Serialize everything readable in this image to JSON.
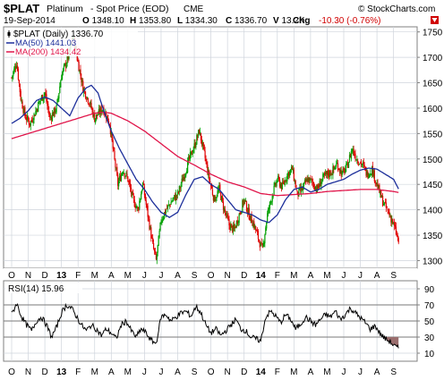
{
  "header": {
    "symbol": "$PLAT",
    "name": "Platinum",
    "subtitle": "- Spot Price (EOD)",
    "exchange": "CME",
    "watermark": "© StockCharts.com",
    "date": "19-Sep-2014",
    "ohlc": [
      {
        "k": "O",
        "v": "1348.10"
      },
      {
        "k": "H",
        "v": "1353.80"
      },
      {
        "k": "L",
        "v": "1334.30"
      },
      {
        "k": "C",
        "v": "1336.70"
      },
      {
        "k": "V",
        "v": "13.2K"
      }
    ],
    "chg_label": "Chg",
    "chg_value": "-10.30 (-0.76%)"
  },
  "legend": {
    "price": "$PLAT (Daily) 1336.70",
    "ma50": "MA(50) 1441.03",
    "ma200": "MA(200) 1434.42"
  },
  "rsi_label": "RSI(14) 15.96",
  "colors": {
    "up": "#00a000",
    "down": "#e00000",
    "ma50": "#1c2e9a",
    "ma200": "#e0154a",
    "grid": "#cfd4dc",
    "rsi_line": "#000000",
    "rsi_fill": "#9a6d6d"
  },
  "chart_data": {
    "type": "candlestick",
    "x_ticks": [
      "O",
      "N",
      "D",
      "13",
      "F",
      "M",
      "A",
      "M",
      "J",
      "J",
      "A",
      "S",
      "O",
      "N",
      "D",
      "14",
      "F",
      "M",
      "A",
      "M",
      "J",
      "J",
      "A",
      "S"
    ],
    "bold_ticks": [
      "13",
      "14"
    ],
    "price_axis": {
      "ticks": [
        1300,
        1350,
        1400,
        1450,
        1500,
        1550,
        1600,
        1650,
        1700,
        1750
      ],
      "ylim": [
        1285,
        1760
      ]
    },
    "rsi_axis": {
      "ticks": [
        10,
        30,
        50,
        70,
        90
      ],
      "ylim": [
        0,
        100
      ],
      "ref_lines": [
        30,
        50,
        70
      ]
    },
    "price_anchors": [
      [
        0,
        1660
      ],
      [
        0.3,
        1690
      ],
      [
        0.55,
        1620
      ],
      [
        0.8,
        1585
      ],
      [
        1.1,
        1570
      ],
      [
        1.4,
        1590
      ],
      [
        1.7,
        1615
      ],
      [
        2.0,
        1630
      ],
      [
        2.3,
        1580
      ],
      [
        2.7,
        1600
      ],
      [
        3.0,
        1665
      ],
      [
        3.4,
        1700
      ],
      [
        3.7,
        1740
      ],
      [
        4.0,
        1690
      ],
      [
        4.3,
        1640
      ],
      [
        4.7,
        1610
      ],
      [
        5.0,
        1580
      ],
      [
        5.5,
        1600
      ],
      [
        5.9,
        1570
      ],
      [
        6.1,
        1520
      ],
      [
        6.4,
        1450
      ],
      [
        6.7,
        1480
      ],
      [
        7.0,
        1460
      ],
      [
        7.3,
        1420
      ],
      [
        7.6,
        1400
      ],
      [
        7.9,
        1450
      ],
      [
        8.2,
        1390
      ],
      [
        8.5,
        1330
      ],
      [
        8.7,
        1300
      ],
      [
        9.0,
        1380
      ],
      [
        9.3,
        1400
      ],
      [
        9.7,
        1420
      ],
      [
        10.0,
        1430
      ],
      [
        10.3,
        1460
      ],
      [
        10.7,
        1500
      ],
      [
        11.0,
        1525
      ],
      [
        11.3,
        1555
      ],
      [
        11.6,
        1510
      ],
      [
        11.9,
        1460
      ],
      [
        12.2,
        1420
      ],
      [
        12.5,
        1440
      ],
      [
        12.8,
        1400
      ],
      [
        13.1,
        1370
      ],
      [
        13.4,
        1360
      ],
      [
        13.7,
        1390
      ],
      [
        14.0,
        1420
      ],
      [
        14.3,
        1390
      ],
      [
        14.6,
        1370
      ],
      [
        14.9,
        1340
      ],
      [
        15.1,
        1320
      ],
      [
        15.4,
        1390
      ],
      [
        15.7,
        1430
      ],
      [
        16.0,
        1460
      ],
      [
        16.3,
        1445
      ],
      [
        16.6,
        1470
      ],
      [
        16.9,
        1480
      ],
      [
        17.2,
        1430
      ],
      [
        17.5,
        1440
      ],
      [
        17.8,
        1460
      ],
      [
        18.1,
        1455
      ],
      [
        18.4,
        1440
      ],
      [
        18.7,
        1460
      ],
      [
        19.0,
        1470
      ],
      [
        19.3,
        1475
      ],
      [
        19.6,
        1490
      ],
      [
        19.9,
        1470
      ],
      [
        20.2,
        1485
      ],
      [
        20.5,
        1520
      ],
      [
        20.8,
        1500
      ],
      [
        21.1,
        1490
      ],
      [
        21.4,
        1470
      ],
      [
        21.7,
        1480
      ],
      [
        22.0,
        1450
      ],
      [
        22.3,
        1420
      ],
      [
        22.6,
        1400
      ],
      [
        22.9,
        1380
      ],
      [
        23.1,
        1360
      ],
      [
        23.3,
        1337
      ]
    ],
    "ma50_anchors": [
      [
        0,
        1570
      ],
      [
        0.5,
        1580
      ],
      [
        1.0,
        1595
      ],
      [
        1.5,
        1615
      ],
      [
        2.0,
        1622
      ],
      [
        2.5,
        1615
      ],
      [
        3.0,
        1600
      ],
      [
        3.5,
        1585
      ],
      [
        4.0,
        1620
      ],
      [
        4.5,
        1640
      ],
      [
        4.8,
        1645
      ],
      [
        5.2,
        1630
      ],
      [
        5.6,
        1590
      ],
      [
        6.0,
        1555
      ],
      [
        6.5,
        1520
      ],
      [
        7.0,
        1490
      ],
      [
        7.5,
        1460
      ],
      [
        8.0,
        1440
      ],
      [
        8.5,
        1415
      ],
      [
        9.0,
        1395
      ],
      [
        9.5,
        1385
      ],
      [
        10.0,
        1395
      ],
      [
        10.5,
        1430
      ],
      [
        11.0,
        1460
      ],
      [
        11.5,
        1465
      ],
      [
        12.0,
        1450
      ],
      [
        12.5,
        1440
      ],
      [
        13.0,
        1420
      ],
      [
        13.5,
        1400
      ],
      [
        14.0,
        1395
      ],
      [
        14.5,
        1390
      ],
      [
        15.0,
        1380
      ],
      [
        15.5,
        1375
      ],
      [
        16.0,
        1390
      ],
      [
        16.5,
        1420
      ],
      [
        17.0,
        1440
      ],
      [
        17.5,
        1445
      ],
      [
        18.0,
        1435
      ],
      [
        18.5,
        1440
      ],
      [
        19.0,
        1450
      ],
      [
        19.5,
        1455
      ],
      [
        20.0,
        1460
      ],
      [
        20.5,
        1470
      ],
      [
        21.0,
        1478
      ],
      [
        21.5,
        1482
      ],
      [
        22.0,
        1480
      ],
      [
        22.5,
        1470
      ],
      [
        23.0,
        1460
      ],
      [
        23.3,
        1441
      ]
    ],
    "ma200_anchors": [
      [
        0,
        1540
      ],
      [
        1,
        1550
      ],
      [
        2,
        1560
      ],
      [
        3,
        1570
      ],
      [
        4,
        1580
      ],
      [
        4.5,
        1585
      ],
      [
        5,
        1590
      ],
      [
        5.5,
        1592
      ],
      [
        6,
        1590
      ],
      [
        7,
        1575
      ],
      [
        8,
        1555
      ],
      [
        9,
        1530
      ],
      [
        10,
        1505
      ],
      [
        11,
        1488
      ],
      [
        12,
        1470
      ],
      [
        13,
        1455
      ],
      [
        14,
        1445
      ],
      [
        15,
        1432
      ],
      [
        16,
        1428
      ],
      [
        17,
        1430
      ],
      [
        18,
        1432
      ],
      [
        19,
        1436
      ],
      [
        20,
        1438
      ],
      [
        21,
        1440
      ],
      [
        22,
        1440
      ],
      [
        23,
        1436
      ],
      [
        23.3,
        1434
      ]
    ],
    "rsi_anchors": [
      [
        0,
        58
      ],
      [
        0.3,
        72
      ],
      [
        0.6,
        55
      ],
      [
        0.9,
        45
      ],
      [
        1.2,
        38
      ],
      [
        1.5,
        50
      ],
      [
        1.8,
        55
      ],
      [
        2.1,
        45
      ],
      [
        2.4,
        30
      ],
      [
        2.7,
        42
      ],
      [
        3.0,
        60
      ],
      [
        3.3,
        70
      ],
      [
        3.6,
        66
      ],
      [
        3.9,
        56
      ],
      [
        4.2,
        45
      ],
      [
        4.5,
        38
      ],
      [
        4.8,
        45
      ],
      [
        5.1,
        40
      ],
      [
        5.4,
        32
      ],
      [
        5.7,
        40
      ],
      [
        6.0,
        35
      ],
      [
        6.3,
        28
      ],
      [
        6.6,
        45
      ],
      [
        6.9,
        50
      ],
      [
        7.2,
        38
      ],
      [
        7.5,
        30
      ],
      [
        7.8,
        40
      ],
      [
        8.1,
        35
      ],
      [
        8.4,
        26
      ],
      [
        8.7,
        22
      ],
      [
        9.0,
        55
      ],
      [
        9.3,
        58
      ],
      [
        9.6,
        50
      ],
      [
        9.9,
        55
      ],
      [
        10.2,
        60
      ],
      [
        10.5,
        62
      ],
      [
        10.8,
        56
      ],
      [
        11.1,
        68
      ],
      [
        11.4,
        60
      ],
      [
        11.7,
        45
      ],
      [
        12.0,
        35
      ],
      [
        12.3,
        40
      ],
      [
        12.6,
        32
      ],
      [
        12.9,
        38
      ],
      [
        13.2,
        45
      ],
      [
        13.5,
        52
      ],
      [
        13.8,
        40
      ],
      [
        14.1,
        38
      ],
      [
        14.4,
        30
      ],
      [
        14.7,
        28
      ],
      [
        15.0,
        25
      ],
      [
        15.3,
        55
      ],
      [
        15.6,
        62
      ],
      [
        15.9,
        56
      ],
      [
        16.2,
        48
      ],
      [
        16.5,
        58
      ],
      [
        16.8,
        52
      ],
      [
        17.1,
        40
      ],
      [
        17.4,
        46
      ],
      [
        17.7,
        55
      ],
      [
        18.0,
        50
      ],
      [
        18.3,
        45
      ],
      [
        18.6,
        52
      ],
      [
        18.9,
        58
      ],
      [
        19.2,
        55
      ],
      [
        19.5,
        62
      ],
      [
        19.8,
        52
      ],
      [
        20.1,
        58
      ],
      [
        20.4,
        66
      ],
      [
        20.7,
        60
      ],
      [
        21.0,
        54
      ],
      [
        21.3,
        48
      ],
      [
        21.6,
        40
      ],
      [
        21.9,
        44
      ],
      [
        22.2,
        34
      ],
      [
        22.5,
        28
      ],
      [
        22.8,
        24
      ],
      [
        23.1,
        18
      ],
      [
        23.3,
        16
      ]
    ],
    "last_close": 1336.7
  }
}
